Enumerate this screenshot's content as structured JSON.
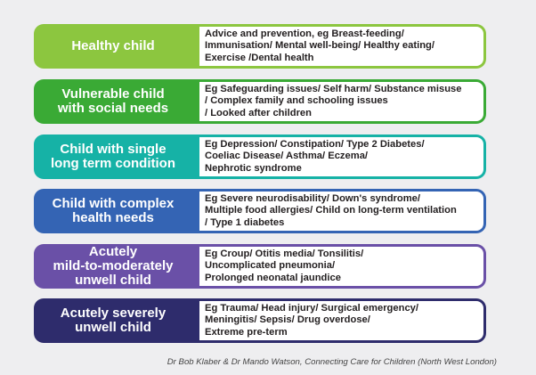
{
  "rows": [
    {
      "label": "Healthy child",
      "description": "Advice and prevention, eg Breast-feeding/\nImmunisation/ Mental well-being/ Healthy eating/\nExercise /Dental health",
      "color": "#8cc63f"
    },
    {
      "label": "Vulnerable child\nwith social needs",
      "description": "Eg Safeguarding issues/ Self harm/ Substance misuse\n/ Complex family and schooling issues\n/ Looked after children",
      "color": "#3aaa35"
    },
    {
      "label": "Child with single\nlong term condition",
      "description": "Eg Depression/ Constipation/ Type 2 Diabetes/\nCoeliac Disease/ Asthma/ Eczema/\nNephrotic syndrome",
      "color": "#16b2a6"
    },
    {
      "label": "Child with complex\nhealth needs",
      "description": "Eg Severe neurodisability/ Down's syndrome/\nMultiple food allergies/ Child on long-term ventilation\n/ Type 1 diabetes",
      "color": "#3464b4"
    },
    {
      "label": "Acutely\nmild-to-moderately\nunwell child",
      "description": "Eg Croup/ Otitis media/ Tonsilitis/\nUncomplicated pneumonia/\nProlonged neonatal jaundice",
      "color": "#6a50a7"
    },
    {
      "label": "Acutely severely\nunwell child",
      "description": "Eg Trauma/ Head injury/ Surgical emergency/\nMeningitis/ Sepsis/ Drug overdose/\nExtreme pre-term",
      "color": "#2e2c6c"
    }
  ],
  "credit": "Dr Bob Klaber & Dr Mando Watson, Connecting Care for Children (North West London)"
}
